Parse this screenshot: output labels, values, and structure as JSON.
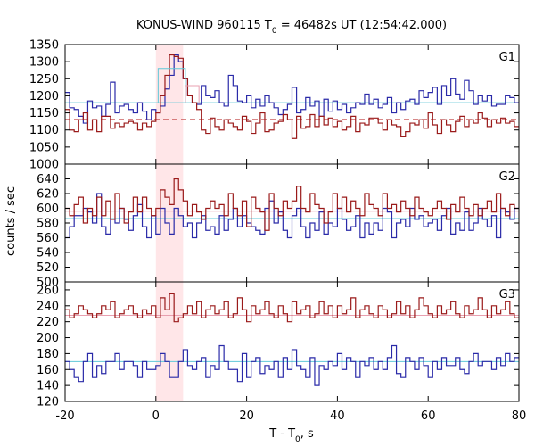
{
  "chart_data": {
    "type": "line",
    "title_main": "KONUS-WIND 960115 T",
    "title_sub": "0",
    "title_rest": " = 46482s UT (12:54:42.000)",
    "xlabel_main": "T - T",
    "xlabel_sub": "0",
    "xlabel_rest": ", s",
    "ylabel": "counts / sec",
    "xlim": [
      -20,
      80
    ],
    "x_ticks": [
      -20,
      0,
      20,
      40,
      60,
      80
    ],
    "highlight": {
      "x_start": 0,
      "x_end": 6,
      "color": "#ffe6e8"
    },
    "colors": {
      "blue": "#2a2aa8",
      "red": "#9a1a1a",
      "cyan": "#60c8d8",
      "pink": "#e8a0b0",
      "dashed": "#b01010"
    },
    "panels": [
      {
        "label": "G1",
        "ylim": [
          1000,
          1350
        ],
        "y_ticks": [
          1000,
          1050,
          1100,
          1150,
          1200,
          1250,
          1300,
          1350
        ],
        "bin_start": -20,
        "bin_width": 1,
        "series": [
          {
            "color_key": "blue",
            "values": [
              1210,
              1165,
              1160,
              1140,
              1120,
              1185,
              1165,
              1170,
              1140,
              1175,
              1240,
              1150,
              1170,
              1175,
              1160,
              1150,
              1180,
              1155,
              1130,
              1160,
              1150,
              1170,
              1220,
              1260,
              1320,
              1300,
              1250,
              1200,
              1180,
              1175,
              1230,
              1200,
              1195,
              1215,
              1180,
              1170,
              1260,
              1230,
              1185,
              1180,
              1200,
              1165,
              1190,
              1170,
              1200,
              1180,
              1165,
              1145,
              1160,
              1175,
              1225,
              1150,
              1160,
              1195,
              1170,
              1185,
              1140,
              1190,
              1155,
              1185,
              1160,
              1175,
              1150,
              1165,
              1180,
              1175,
              1205,
              1175,
              1190,
              1165,
              1175,
              1195,
              1150,
              1180,
              1160,
              1185,
              1190,
              1175,
              1215,
              1195,
              1210,
              1225,
              1175,
              1230,
              1200,
              1250,
              1205,
              1190,
              1245,
              1215,
              1175,
              1200,
              1185,
              1200,
              1170,
              1175,
              1175,
              1200,
              1195,
              1180
            ]
          },
          {
            "color_key": "red",
            "values": [
              1160,
              1100,
              1095,
              1130,
              1150,
              1100,
              1130,
              1095,
              1140,
              1140,
              1105,
              1120,
              1110,
              1120,
              1125,
              1120,
              1100,
              1120,
              1110,
              1125,
              1150,
              1200,
              1260,
              1320,
              1315,
              1310,
              1250,
              1200,
              1180,
              1160,
              1100,
              1090,
              1135,
              1110,
              1100,
              1130,
              1120,
              1110,
              1100,
              1140,
              1125,
              1090,
              1120,
              1150,
              1095,
              1100,
              1120,
              1125,
              1145,
              1130,
              1075,
              1140,
              1105,
              1110,
              1145,
              1110,
              1140,
              1115,
              1135,
              1110,
              1125,
              1100,
              1110,
              1140,
              1095,
              1120,
              1115,
              1135,
              1135,
              1120,
              1100,
              1130,
              1115,
              1110,
              1080,
              1095,
              1120,
              1115,
              1130,
              1105,
              1150,
              1115,
              1090,
              1130,
              1115,
              1095,
              1125,
              1140,
              1110,
              1130,
              1120,
              1150,
              1135,
              1110,
              1130,
              1120,
              1135,
              1120,
              1125,
              1110
            ]
          },
          {
            "color_key": "cyan",
            "kind": "box",
            "x_start": 0.5,
            "x_end": 6.5,
            "y_value": 1280,
            "y_base": 1180
          },
          {
            "color_key": "pink",
            "kind": "box",
            "x_start": 6.5,
            "x_end": 9.5,
            "y_value": 1230,
            "y_base": 1180
          }
        ],
        "reference_lines": [
          {
            "color_key": "cyan",
            "y": 1180,
            "dashed": false
          },
          {
            "color_key": "dashed",
            "y": 1130,
            "dashed": true
          }
        ]
      },
      {
        "label": "G2",
        "ylim": [
          500,
          660
        ],
        "y_ticks": [
          500,
          520,
          540,
          560,
          580,
          600,
          620,
          640
        ],
        "bin_start": -20,
        "bin_width": 1,
        "series": [
          {
            "color_key": "blue",
            "values": [
              560,
              575,
              590,
              590,
              600,
              595,
              580,
              620,
              575,
              565,
              585,
              580,
              600,
              585,
              570,
              590,
              605,
              575,
              560,
              590,
              565,
              600,
              580,
              565,
              600,
              590,
              575,
              580,
              560,
              580,
              590,
              570,
              575,
              565,
              590,
              570,
              585,
              600,
              575,
              590,
              580,
              575,
              570,
              565,
              600,
              610,
              580,
              595,
              570,
              560,
              590,
              600,
              575,
              560,
              580,
              570,
              595,
              565,
              580,
              575,
              600,
              585,
              570,
              575,
              590,
              560,
              580,
              565,
              580,
              570,
              600,
              595,
              560,
              580,
              585,
              575,
              600,
              585,
              590,
              575,
              580,
              585,
              570,
              590,
              600,
              565,
              580,
              570,
              595,
              570,
              580,
              600,
              585,
              575,
              590,
              560,
              600,
              595,
              585,
              600
            ]
          },
          {
            "color_key": "red",
            "values": [
              600,
              590,
              605,
              615,
              580,
              600,
              590,
              615,
              590,
              610,
              585,
              620,
              600,
              580,
              595,
              615,
              595,
              615,
              600,
              590,
              600,
              625,
              615,
              605,
              640,
              625,
              610,
              590,
              605,
              595,
              585,
              600,
              610,
              600,
              605,
              590,
              620,
              600,
              590,
              610,
              575,
              615,
              600,
              595,
              570,
              620,
              600,
              590,
              610,
              600,
              610,
              630,
              600,
              595,
              620,
              605,
              600,
              580,
              595,
              620,
              600,
              615,
              595,
              610,
              600,
              590,
              620,
              605,
              600,
              590,
              620,
              600,
              605,
              595,
              610,
              600,
              590,
              615,
              600,
              595,
              590,
              600,
              610,
              600,
              585,
              605,
              595,
              615,
              600,
              590,
              605,
              590,
              600,
              610,
              595,
              620,
              600,
              590,
              605,
              600
            ]
          }
        ],
        "reference_lines": [
          {
            "color_key": "cyan",
            "y": 586,
            "dashed": false
          },
          {
            "color_key": "pink",
            "y": 596,
            "dashed": false
          }
        ]
      },
      {
        "label": "G3",
        "ylim": [
          120,
          270
        ],
        "y_ticks": [
          120,
          140,
          160,
          180,
          200,
          220,
          240,
          260
        ],
        "bin_start": -20,
        "bin_width": 1,
        "series": [
          {
            "color_key": "blue",
            "values": [
              170,
              160,
              150,
              145,
              170,
              180,
              150,
              165,
              155,
              170,
              170,
              180,
              160,
              170,
              170,
              165,
              150,
              170,
              160,
              160,
              165,
              180,
              170,
              150,
              150,
              170,
              185,
              165,
              160,
              170,
              175,
              150,
              165,
              160,
              190,
              170,
              160,
              160,
              145,
              180,
              150,
              170,
              175,
              155,
              165,
              160,
              170,
              150,
              175,
              160,
              185,
              165,
              160,
              150,
              175,
              140,
              165,
              160,
              170,
              165,
              180,
              160,
              175,
              170,
              150,
              170,
              165,
              175,
              160,
              170,
              160,
              175,
              190,
              155,
              150,
              175,
              170,
              160,
              175,
              165,
              150,
              170,
              160,
              175,
              165,
              165,
              175,
              160,
              155,
              170,
              180,
              165,
              170,
              170,
              160,
              175,
              165,
              180,
              170,
              175
            ]
          },
          {
            "color_key": "red",
            "values": [
              235,
              225,
              230,
              240,
              235,
              230,
              225,
              230,
              240,
              235,
              245,
              225,
              230,
              235,
              240,
              230,
              225,
              235,
              230,
              240,
              225,
              250,
              235,
              255,
              220,
              225,
              230,
              240,
              230,
              245,
              225,
              235,
              240,
              230,
              235,
              245,
              225,
              230,
              250,
              235,
              220,
              240,
              230,
              235,
              245,
              230,
              225,
              240,
              230,
              220,
              245,
              230,
              235,
              240,
              225,
              230,
              245,
              230,
              240,
              225,
              240,
              230,
              235,
              250,
              225,
              235,
              240,
              230,
              225,
              240,
              235,
              225,
              230,
              245,
              230,
              240,
              225,
              235,
              250,
              240,
              230,
              225,
              240,
              230,
              235,
              245,
              230,
              225,
              240,
              230,
              235,
              250,
              235,
              225,
              240,
              230,
              235,
              245,
              230,
              225
            ]
          }
        ],
        "reference_lines": [
          {
            "color_key": "cyan",
            "y": 170,
            "dashed": false
          },
          {
            "color_key": "pink",
            "y": 228,
            "dashed": false
          }
        ]
      }
    ]
  }
}
